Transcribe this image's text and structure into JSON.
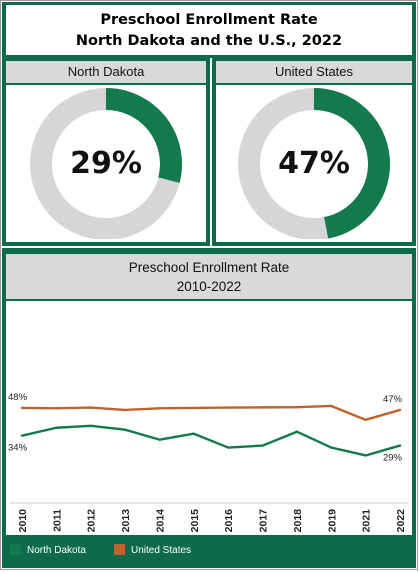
{
  "header": {
    "title_line1": "Preschool Enrollment Rate",
    "title_line2": "North Dakota and the U.S., 2022"
  },
  "panels": [
    {
      "label": "North Dakota",
      "value_text": "29%",
      "value": 0.29
    },
    {
      "label": "United States",
      "value_text": "47%",
      "value": 0.47
    }
  ],
  "colors": {
    "frame_green": "#0e6a4a",
    "nd": "#137a4e",
    "us": "#c0622b",
    "donut_track": "#d6d6d6"
  },
  "chart_data": {
    "type": "line",
    "title": "Preschool Enrollment Rate",
    "subtitle": "2010-2022",
    "x": [
      "2010",
      "2011",
      "2012",
      "2013",
      "2014",
      "2015",
      "2016",
      "2017",
      "2018",
      "2019",
      "2021",
      "2022"
    ],
    "ylim": [
      0,
      1
    ],
    "grid": false,
    "legend": "bottom",
    "series": [
      {
        "name": "North Dakota",
        "color": "#137a4e",
        "values": [
          0.34,
          0.38,
          0.39,
          0.37,
          0.32,
          0.35,
          0.28,
          0.29,
          0.36,
          0.28,
          0.24,
          0.29
        ]
      },
      {
        "name": "United States",
        "color": "#c0622b",
        "values": [
          0.48,
          0.478,
          0.482,
          0.47,
          0.478,
          0.48,
          0.482,
          0.483,
          0.484,
          0.49,
          0.42,
          0.47
        ]
      }
    ],
    "annotations": [
      {
        "text": "48%",
        "series": "United States",
        "x": "2010"
      },
      {
        "text": "34%",
        "series": "North Dakota",
        "x": "2010"
      },
      {
        "text": "47%",
        "series": "United States",
        "x": "2022"
      },
      {
        "text": "29%",
        "series": "North Dakota",
        "x": "2022"
      }
    ]
  },
  "legend": {
    "items": [
      {
        "label": "North Dakota",
        "color": "#137a4e"
      },
      {
        "label": "United States",
        "color": "#c0622b"
      }
    ]
  }
}
